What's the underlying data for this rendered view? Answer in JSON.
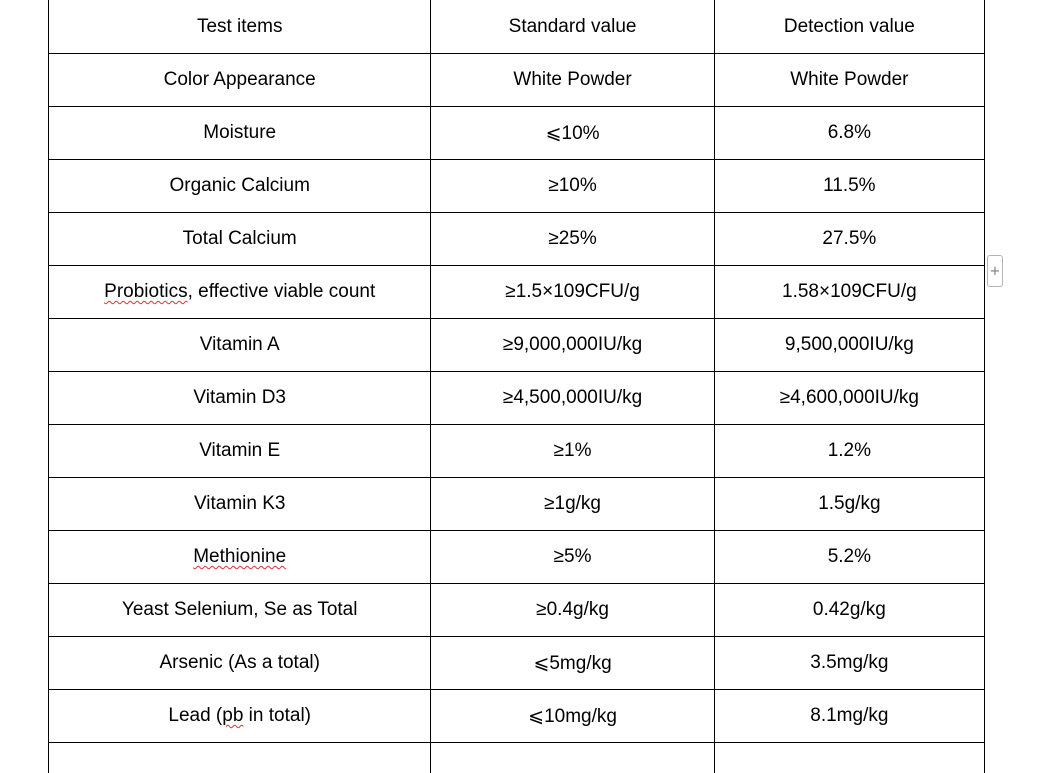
{
  "table": {
    "headers": [
      "Test items",
      "Standard value",
      "Detection value"
    ],
    "rows": [
      {
        "item": "Color Appearance",
        "standard": "White Powder",
        "detection": "White Powder"
      },
      {
        "item": "Moisture",
        "standard": "⩽10%",
        "detection": "6.8%"
      },
      {
        "item": "Organic Calcium",
        "standard": "≥10%",
        "detection": "11.5%"
      },
      {
        "item": "Total Calcium",
        "standard": "≥25%",
        "detection": "27.5%"
      },
      {
        "item": "Probiotics, effective viable count",
        "item_flagged": "Probiotics",
        "item_rest": ", effective viable count",
        "standard": "≥1.5×109CFU/g",
        "detection": "1.58×109CFU/g"
      },
      {
        "item": "Vitamin A",
        "standard": "≥9,000,000IU/kg",
        "detection": "9,500,000IU/kg"
      },
      {
        "item": "Vitamin D3",
        "standard": "≥4,500,000IU/kg",
        "detection": "≥4,600,000IU/kg"
      },
      {
        "item": "Vitamin E",
        "standard": "≥1%",
        "detection": "1.2%"
      },
      {
        "item": "Vitamin K3",
        "standard": "≥1g/kg",
        "detection": "1.5g/kg"
      },
      {
        "item": "Methionine",
        "standard": "≥5%",
        "detection": "5.2%"
      },
      {
        "item": "Yeast Selenium, Se as Total",
        "standard": "≥0.4g/kg",
        "detection": "0.42g/kg"
      },
      {
        "item": "Arsenic (As a total)",
        "standard": "⩽5mg/kg",
        "detection": "3.5mg/kg"
      },
      {
        "item": "Lead (pb in total)",
        "item_pre": "Lead (",
        "item_flagged": "pb",
        "item_post": " in total)",
        "standard": "⩽10mg/kg",
        "detection": "8.1mg/kg"
      }
    ]
  },
  "add_row_handle": {
    "icon": "plus-icon",
    "glyph": "+"
  }
}
